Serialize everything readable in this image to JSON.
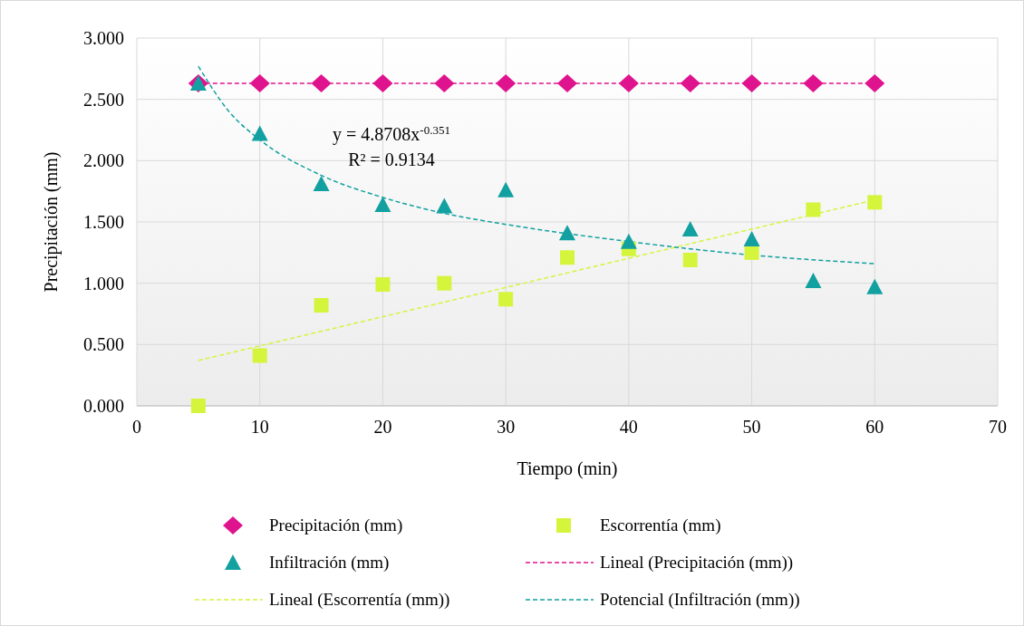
{
  "chart_data": {
    "type": "scatter",
    "xlabel": "Tiempo (min)",
    "ylabel": "Precipitación (mm)",
    "xlim": [
      0,
      70
    ],
    "xticks": [
      0,
      10,
      20,
      30,
      40,
      50,
      60,
      70
    ],
    "ylim": [
      0,
      3
    ],
    "yticks": [
      {
        "value": 0,
        "label": "0.000"
      },
      {
        "value": 0.5,
        "label": "0.500"
      },
      {
        "value": 1,
        "label": "1.000"
      },
      {
        "value": 1.5,
        "label": "1.500"
      },
      {
        "value": 2,
        "label": "2.000"
      },
      {
        "value": 2.5,
        "label": "2.500"
      },
      {
        "value": 3,
        "label": "3.000"
      }
    ],
    "grid": true,
    "legend": "bottom",
    "annotations": [
      "y = 4.8708x$^{-0.351}$",
      "R² = 0.9134"
    ],
    "series": [
      {
        "name": "Precipitación (mm)",
        "marker": "diamond",
        "color": "#e0138f",
        "x": [
          5,
          10,
          15,
          20,
          25,
          30,
          35,
          40,
          45,
          50,
          55,
          60
        ],
        "values": [
          2.63,
          2.63,
          2.63,
          2.63,
          2.63,
          2.63,
          2.63,
          2.63,
          2.63,
          2.63,
          2.63,
          2.63
        ]
      },
      {
        "name": "Escorrentía (mm)",
        "marker": "square",
        "color": "#d4f53c",
        "x": [
          5,
          10,
          15,
          20,
          25,
          30,
          35,
          40,
          45,
          50,
          55,
          60
        ],
        "values": [
          0,
          0.41,
          0.82,
          0.99,
          1.0,
          0.87,
          1.21,
          1.28,
          1.19,
          1.25,
          1.6,
          1.66
        ]
      },
      {
        "name": "Infiltración (mm)",
        "marker": "triangle",
        "color": "#13a0a0",
        "x": [
          5,
          10,
          15,
          20,
          25,
          30,
          35,
          40,
          45,
          50,
          55,
          60
        ],
        "values": [
          2.63,
          2.22,
          1.81,
          1.64,
          1.63,
          1.76,
          1.41,
          1.34,
          1.44,
          1.36,
          1.02,
          0.97
        ]
      },
      {
        "name": "Lineal (Precipitación (mm))",
        "type": "line",
        "marker": "none",
        "line_style": "dashed",
        "color": "#e0138f",
        "x": [
          5,
          60
        ],
        "values": [
          2.63,
          2.63
        ]
      },
      {
        "name": "Lineal (Escorrentía (mm))",
        "type": "line",
        "marker": "none",
        "line_style": "dashed",
        "color": "#d4f53c",
        "x": [
          5,
          60
        ],
        "values": [
          0.37,
          1.68
        ]
      },
      {
        "name": "Potencial (Infiltración (mm))",
        "type": "line",
        "marker": "none",
        "line_style": "dashed",
        "color": "#13a0a0",
        "x": [
          5,
          7.5,
          10,
          15,
          20,
          25,
          30,
          40,
          50,
          60
        ],
        "values": [
          2.77,
          2.4,
          2.17,
          1.88,
          1.7,
          1.57,
          1.48,
          1.34,
          1.23,
          1.16
        ]
      }
    ]
  }
}
